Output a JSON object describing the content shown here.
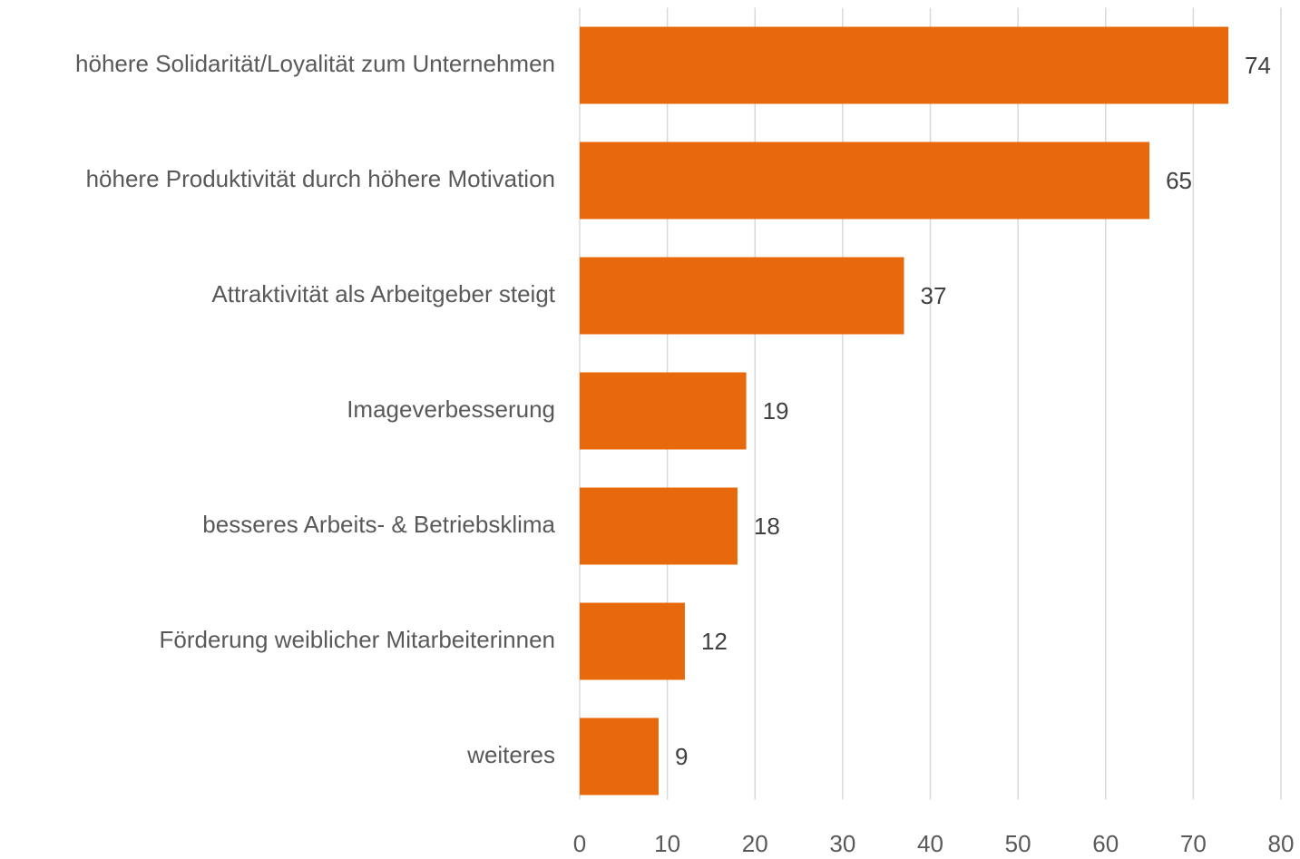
{
  "chart_data": {
    "type": "barh",
    "categories": [
      "höhere Solidarität/Loyalität zum Unternehmen",
      "höhere Produktivität durch höhere Motivation",
      "Attraktivität als Arbeitgeber steigt",
      "Imageverbesserung",
      "besseres Arbeits- & Betriebsklima",
      "Förderung weiblicher Mitarbeiterinnen",
      "weiteres"
    ],
    "values": [
      74,
      65,
      37,
      19,
      18,
      12,
      9
    ],
    "color": "#e8690b",
    "xlim": [
      0,
      80
    ],
    "xticks": [
      0,
      10,
      20,
      30,
      40,
      50,
      60,
      70,
      80
    ],
    "grid": true
  }
}
